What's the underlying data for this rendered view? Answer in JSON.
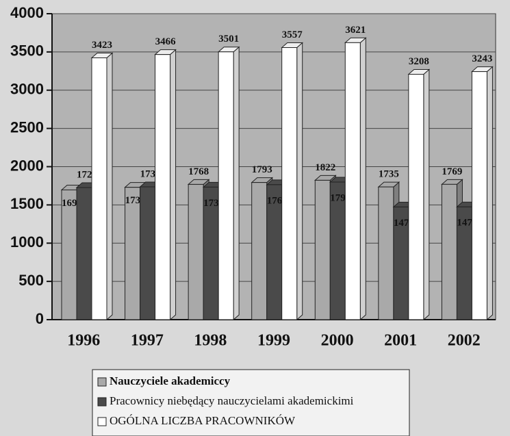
{
  "chart_data": {
    "type": "bar3d",
    "categories": [
      "1996",
      "1997",
      "1998",
      "1999",
      "2000",
      "2001",
      "2002"
    ],
    "series": [
      {
        "name": "Nauczyciele akademiccy",
        "color": "#a9a9a9",
        "values": [
          1696,
          1730,
          1768,
          1793,
          1822,
          1735,
          1769
        ]
      },
      {
        "name": "Pracownicy niebędący nauczycielami akademickimi",
        "color": "#4a4a4a",
        "values": [
          1727,
          1736,
          1733,
          1764,
          1799,
          1473,
          1474
        ]
      },
      {
        "name": "OGÓLNA LICZBA PRACOWNIKÓW",
        "color": "#ffffff",
        "values": [
          3423,
          3466,
          3501,
          3557,
          3621,
          3208,
          3243
        ]
      }
    ],
    "ylim": [
      0,
      4000
    ],
    "yticks": [
      0,
      500,
      1000,
      1500,
      2000,
      2500,
      3000,
      3500,
      4000
    ],
    "grid": true
  }
}
